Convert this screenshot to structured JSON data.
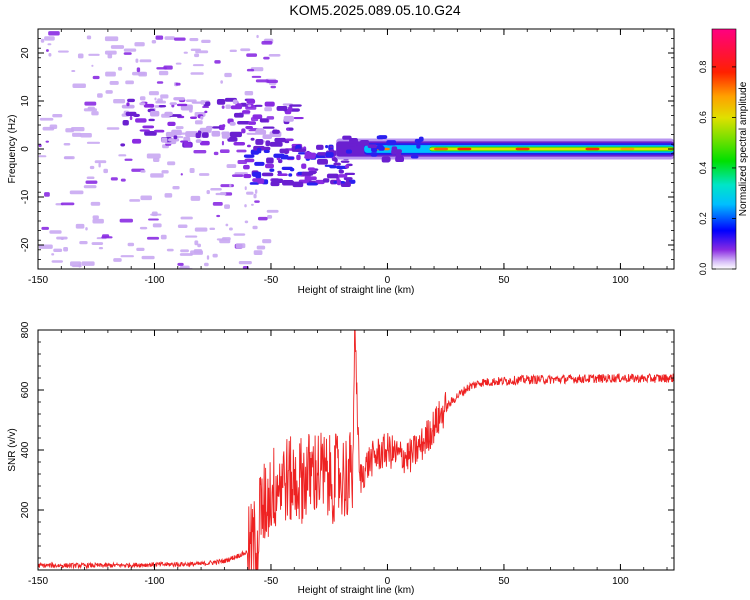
{
  "title": "KOM5.2025.089.05.10.G24",
  "chart_data": [
    {
      "type": "heatmap",
      "xlabel": "Height of straight line (km)",
      "ylabel": "Frequency (Hz)",
      "xlim": [
        -150,
        123
      ],
      "ylim": [
        -25,
        25
      ],
      "xticks": [
        -150,
        -100,
        -50,
        0,
        50,
        100
      ],
      "yticks": [
        -20,
        -10,
        0,
        10,
        20
      ],
      "colorbar": {
        "label": "Normalized spectral amplitude",
        "range": [
          0,
          0.95
        ],
        "ticks": [
          0.0,
          0.2,
          0.4,
          0.6,
          0.8
        ]
      },
      "ridge": {
        "description_points": [
          {
            "x": -60,
            "y": -3
          },
          {
            "x": -40,
            "y": -2
          },
          {
            "x": -20,
            "y": 0
          },
          {
            "x": 0,
            "y": 0
          },
          {
            "x": 50,
            "y": 0
          },
          {
            "x": 123,
            "y": 0
          }
        ]
      }
    },
    {
      "type": "line",
      "xlabel": "Height of straight line (km)",
      "ylabel": "SNR (v/v)",
      "xlim": [
        -150,
        123
      ],
      "ylim": [
        0,
        800
      ],
      "xticks": [
        -150,
        -100,
        -50,
        0,
        50,
        100
      ],
      "yticks": [
        200,
        400,
        600,
        800
      ],
      "series": [
        {
          "color": "#ee2222",
          "points": [
            [
              -150,
              15
            ],
            [
              -120,
              15
            ],
            [
              -100,
              18
            ],
            [
              -80,
              20
            ],
            [
              -70,
              30
            ],
            [
              -60,
              60
            ],
            [
              -55,
              120
            ],
            [
              -50,
              200
            ],
            [
              -45,
              250
            ],
            [
              -40,
              230
            ],
            [
              -35,
              250
            ],
            [
              -30,
              270
            ],
            [
              -25,
              240
            ],
            [
              -20,
              250
            ],
            [
              -15,
              260
            ],
            [
              -14,
              800
            ],
            [
              -12,
              300
            ],
            [
              -8,
              360
            ],
            [
              -5,
              380
            ],
            [
              0,
              400
            ],
            [
              5,
              380
            ],
            [
              10,
              380
            ],
            [
              15,
              420
            ],
            [
              20,
              480
            ],
            [
              25,
              540
            ],
            [
              30,
              580
            ],
            [
              35,
              610
            ],
            [
              40,
              625
            ],
            [
              50,
              630
            ],
            [
              60,
              635
            ],
            [
              70,
              635
            ],
            [
              80,
              637
            ],
            [
              90,
              638
            ],
            [
              100,
              640
            ],
            [
              110,
              638
            ],
            [
              123,
              640
            ]
          ]
        }
      ]
    }
  ]
}
